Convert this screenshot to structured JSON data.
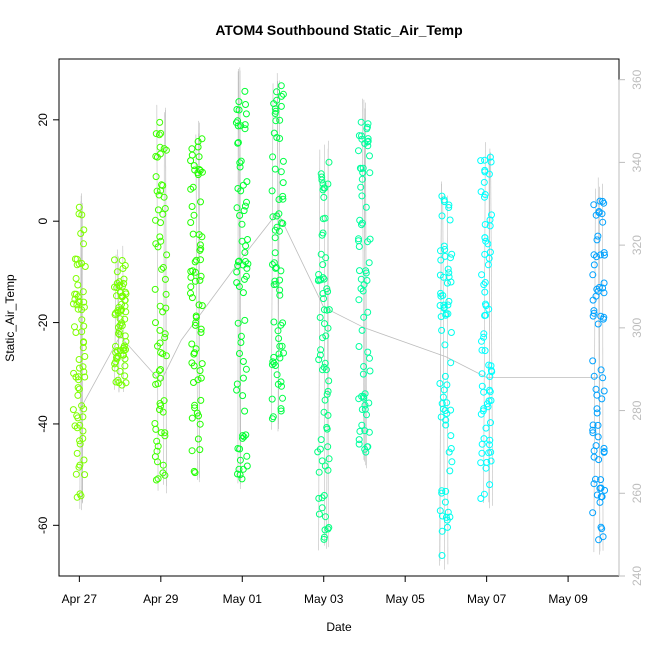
{
  "chart_data": {
    "type": "scatter",
    "title": "ATOM4 Southbound Static_Air_Temp",
    "xlabel": "Date",
    "ylabel": "Static_Air_Temp",
    "x_ticks": [
      "Apr 27",
      "Apr 29",
      "May 01",
      "May 03",
      "May 05",
      "May 07",
      "May 09"
    ],
    "x_tick_dates": [
      "2016-04-27",
      "2016-04-29",
      "2016-05-01",
      "2016-05-03",
      "2016-05-05",
      "2016-05-07",
      "2016-05-09"
    ],
    "xlim": [
      "2016-04-26T12:00",
      "2016-05-10T06:00"
    ],
    "ylim": [
      -70,
      32
    ],
    "y_ticks": [
      -60,
      -40,
      -20,
      0,
      20
    ],
    "y2lim": [
      240,
      365
    ],
    "y2_ticks": [
      240,
      260,
      280,
      300,
      320,
      340,
      360
    ],
    "grid": false,
    "point_style": "open-circle",
    "color_scale": [
      "#7fff00",
      "#00ff40",
      "#00ff9f",
      "#00ffff",
      "#00a2ff"
    ],
    "trace_color": "#bdbdbd",
    "profiles": [
      {
        "date": "2016-04-27T00:00",
        "ymin": -55,
        "ymax": 3,
        "color": "#7fff00"
      },
      {
        "date": "2016-04-28T00:00",
        "ymin": -33,
        "ymax": -7,
        "color": "#76ff00"
      },
      {
        "date": "2016-04-29T00:00",
        "ymin": -52,
        "ymax": 20,
        "color": "#40ff00"
      },
      {
        "date": "2016-04-29T21:00",
        "ymin": -50,
        "ymax": 17,
        "color": "#22ff00"
      },
      {
        "date": "2016-05-01T00:00",
        "ymin": -51,
        "ymax": 28,
        "color": "#00ff30"
      },
      {
        "date": "2016-05-01T21:00",
        "ymin": -40,
        "ymax": 27,
        "color": "#00ff45"
      },
      {
        "date": "2016-05-03T00:00",
        "ymin": -63,
        "ymax": 14,
        "color": "#00ff80"
      },
      {
        "date": "2016-05-04T00:00",
        "ymin": -47,
        "ymax": 22,
        "color": "#00ff9f"
      },
      {
        "date": "2016-05-06T00:00",
        "ymin": -67,
        "ymax": 5,
        "color": "#00ffee"
      },
      {
        "date": "2016-05-07T00:00",
        "ymin": -55,
        "ymax": 13,
        "color": "#00ffff"
      },
      {
        "date": "2016-05-09T18:00",
        "ymin": -65,
        "ymax": 6,
        "color": "#00a2ff"
      }
    ],
    "position_trace": [
      {
        "date": "2016-04-27T00:00",
        "y2": 280
      },
      {
        "date": "2016-04-28T00:00",
        "y2": 298
      },
      {
        "date": "2016-04-29T00:00",
        "y2": 287
      },
      {
        "date": "2016-04-29T12:00",
        "y2": 297
      },
      {
        "date": "2016-05-01T00:00",
        "y2": 317
      },
      {
        "date": "2016-05-01T21:00",
        "y2": 328
      },
      {
        "date": "2016-05-03T00:00",
        "y2": 305
      },
      {
        "date": "2016-05-04T00:00",
        "y2": 300
      },
      {
        "date": "2016-05-06T00:00",
        "y2": 293
      },
      {
        "date": "2016-05-07T00:00",
        "y2": 288
      },
      {
        "date": "2016-05-09T18:00",
        "y2": 288
      }
    ]
  }
}
